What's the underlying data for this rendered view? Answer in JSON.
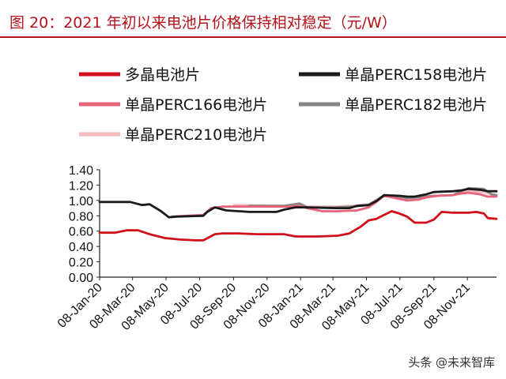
{
  "figure": {
    "title": "图 20：2021 年初以来电池片价格保持相对稳定（元/W）",
    "watermark": "头条 @未来智库"
  },
  "chart_data": {
    "type": "line",
    "ylim": [
      0,
      1.4
    ],
    "y_ticks": [
      "1.40",
      "1.20",
      "1.00",
      "0.80",
      "0.60",
      "0.40",
      "0.20",
      "0.00"
    ],
    "x_ticks": [
      "08-Jan-20",
      "08-Mar-20",
      "08-May-20",
      "08-Jul-20",
      "08-Sep-20",
      "08-Nov-20",
      "08-Jan-21",
      "08-Mar-21",
      "08-May-21",
      "08-Jul-21",
      "08-Sep-21",
      "08-Nov-21"
    ],
    "x_range": [
      "2020-01-08",
      "2021-12-31"
    ],
    "legend_position": "top",
    "grid": false,
    "series": [
      {
        "name": "多晶电池片",
        "color": "#d0101c",
        "points": [
          [
            "2020-01-08",
            0.58
          ],
          [
            "2020-02-05",
            0.58
          ],
          [
            "2020-02-26",
            0.61
          ],
          [
            "2020-03-18",
            0.61
          ],
          [
            "2020-04-08",
            0.56
          ],
          [
            "2020-05-06",
            0.51
          ],
          [
            "2020-06-03",
            0.49
          ],
          [
            "2020-07-01",
            0.48
          ],
          [
            "2020-07-15",
            0.48
          ],
          [
            "2020-08-05",
            0.56
          ],
          [
            "2020-08-19",
            0.57
          ],
          [
            "2020-09-16",
            0.57
          ],
          [
            "2020-10-21",
            0.56
          ],
          [
            "2020-12-09",
            0.56
          ],
          [
            "2020-12-30",
            0.53
          ],
          [
            "2021-02-10",
            0.53
          ],
          [
            "2021-03-17",
            0.54
          ],
          [
            "2021-04-07",
            0.57
          ],
          [
            "2021-04-28",
            0.66
          ],
          [
            "2021-05-12",
            0.74
          ],
          [
            "2021-05-26",
            0.76
          ],
          [
            "2021-06-09",
            0.81
          ],
          [
            "2021-06-23",
            0.86
          ],
          [
            "2021-07-07",
            0.83
          ],
          [
            "2021-07-21",
            0.79
          ],
          [
            "2021-08-04",
            0.71
          ],
          [
            "2021-08-25",
            0.71
          ],
          [
            "2021-09-08",
            0.75
          ],
          [
            "2021-09-22",
            0.85
          ],
          [
            "2021-10-13",
            0.84
          ],
          [
            "2021-11-10",
            0.84
          ],
          [
            "2021-11-24",
            0.85
          ],
          [
            "2021-12-08",
            0.83
          ],
          [
            "2021-12-15",
            0.77
          ],
          [
            "2021-12-31",
            0.76
          ]
        ]
      },
      {
        "name": "单晶PERC158电池片",
        "color": "#1a1a1a",
        "points": [
          [
            "2020-01-08",
            0.98
          ],
          [
            "2020-03-04",
            0.98
          ],
          [
            "2020-03-25",
            0.94
          ],
          [
            "2020-04-08",
            0.95
          ],
          [
            "2020-04-29",
            0.86
          ],
          [
            "2020-05-13",
            0.78
          ],
          [
            "2020-05-27",
            0.79
          ],
          [
            "2020-07-15",
            0.8
          ],
          [
            "2020-07-22",
            0.85
          ],
          [
            "2020-08-05",
            0.91
          ],
          [
            "2020-08-26",
            0.87
          ],
          [
            "2020-10-07",
            0.85
          ],
          [
            "2020-11-25",
            0.85
          ],
          [
            "2020-12-09",
            0.88
          ],
          [
            "2020-12-30",
            0.91
          ],
          [
            "2021-01-20",
            0.91
          ],
          [
            "2021-03-10",
            0.9
          ],
          [
            "2021-04-07",
            0.9
          ],
          [
            "2021-04-21",
            0.93
          ],
          [
            "2021-05-12",
            0.94
          ],
          [
            "2021-05-26",
            0.99
          ],
          [
            "2021-06-09",
            1.07
          ],
          [
            "2021-07-07",
            1.06
          ],
          [
            "2021-07-21",
            1.05
          ],
          [
            "2021-08-04",
            1.05
          ],
          [
            "2021-08-25",
            1.08
          ],
          [
            "2021-09-08",
            1.11
          ],
          [
            "2021-10-13",
            1.12
          ],
          [
            "2021-10-27",
            1.13
          ],
          [
            "2021-11-10",
            1.15
          ],
          [
            "2021-12-01",
            1.14
          ],
          [
            "2021-12-15",
            1.12
          ],
          [
            "2021-12-31",
            1.12
          ]
        ]
      },
      {
        "name": "单晶PERC166电池片",
        "color": "#e8627a",
        "points": [
          [
            "2020-05-20",
            0.79
          ],
          [
            "2020-07-15",
            0.81
          ],
          [
            "2020-07-29",
            0.9
          ],
          [
            "2020-08-19",
            0.92
          ],
          [
            "2020-10-14",
            0.92
          ],
          [
            "2020-12-23",
            0.92
          ],
          [
            "2021-01-06",
            0.93
          ],
          [
            "2021-01-20",
            0.9
          ],
          [
            "2021-02-17",
            0.86
          ],
          [
            "2021-03-17",
            0.86
          ],
          [
            "2021-04-21",
            0.87
          ],
          [
            "2021-05-12",
            0.91
          ],
          [
            "2021-05-26",
            0.98
          ],
          [
            "2021-06-09",
            1.06
          ],
          [
            "2021-07-07",
            1.02
          ],
          [
            "2021-07-21",
            1.0
          ],
          [
            "2021-08-11",
            1.01
          ],
          [
            "2021-08-25",
            1.04
          ],
          [
            "2021-09-15",
            1.06
          ],
          [
            "2021-10-13",
            1.07
          ],
          [
            "2021-10-27",
            1.09
          ],
          [
            "2021-11-10",
            1.1
          ],
          [
            "2021-12-01",
            1.08
          ],
          [
            "2021-12-15",
            1.05
          ],
          [
            "2021-12-31",
            1.05
          ]
        ]
      },
      {
        "name": "单晶PERC182电池片",
        "color": "#858585",
        "points": [
          [
            "2020-10-07",
            0.93
          ],
          [
            "2020-12-09",
            0.93
          ],
          [
            "2021-01-06",
            0.96
          ],
          [
            "2021-01-20",
            0.91
          ],
          [
            "2021-03-10",
            0.91
          ],
          [
            "2021-04-14",
            0.92
          ],
          [
            "2021-05-12",
            0.94
          ],
          [
            "2021-05-26",
            1.0
          ],
          [
            "2021-06-09",
            1.06
          ],
          [
            "2021-07-07",
            1.05
          ],
          [
            "2021-07-21",
            1.03
          ],
          [
            "2021-08-11",
            1.04
          ],
          [
            "2021-09-08",
            1.06
          ],
          [
            "2021-10-13",
            1.07
          ],
          [
            "2021-10-27",
            1.12
          ],
          [
            "2021-11-10",
            1.16
          ],
          [
            "2021-12-08",
            1.15
          ],
          [
            "2021-12-22",
            1.08
          ],
          [
            "2021-12-31",
            1.07
          ]
        ]
      },
      {
        "name": "单晶PERC210电池片",
        "color": "#f6b9bd",
        "points": [
          [
            "2020-09-09",
            0.94
          ],
          [
            "2020-12-09",
            0.93
          ],
          [
            "2021-01-06",
            0.96
          ],
          [
            "2021-01-20",
            0.92
          ],
          [
            "2021-03-10",
            0.92
          ],
          [
            "2021-04-14",
            0.93
          ],
          [
            "2021-05-12",
            0.95
          ],
          [
            "2021-05-26",
            1.01
          ],
          [
            "2021-06-09",
            1.06
          ],
          [
            "2021-07-07",
            1.05
          ],
          [
            "2021-07-21",
            1.03
          ],
          [
            "2021-08-11",
            1.04
          ],
          [
            "2021-09-08",
            1.06
          ],
          [
            "2021-10-13",
            1.07
          ],
          [
            "2021-10-27",
            1.1
          ],
          [
            "2021-11-10",
            1.12
          ],
          [
            "2021-12-08",
            1.11
          ],
          [
            "2021-12-22",
            1.08
          ],
          [
            "2021-12-31",
            1.07
          ]
        ]
      }
    ]
  }
}
